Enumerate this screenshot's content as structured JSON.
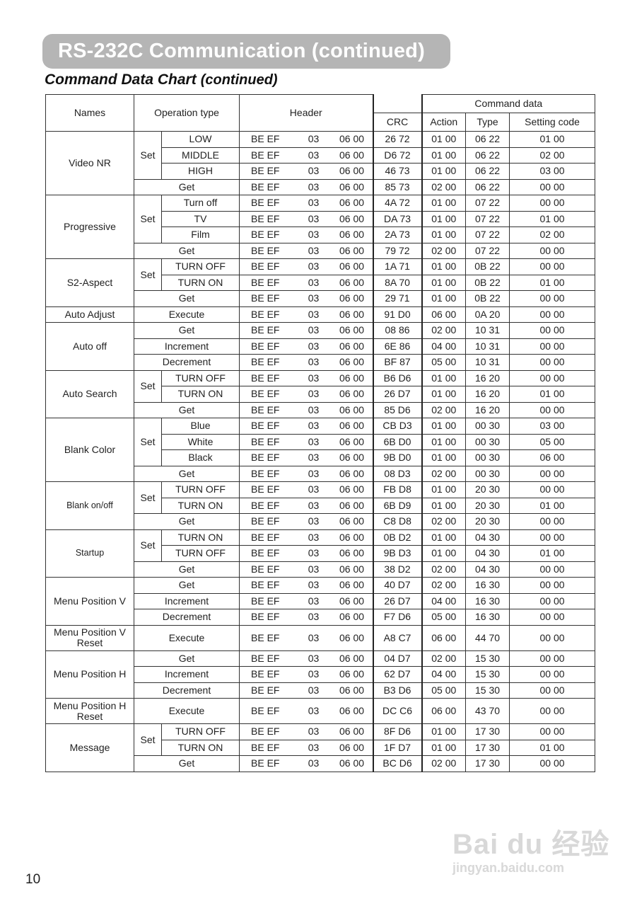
{
  "page": {
    "title": "RS-232C Communication (continued)",
    "subtitle": "Command Data Chart",
    "subtitle_suffix": "(continued)",
    "page_number": "10",
    "watermark": {
      "logo": "Baidu 经验",
      "url": "jingyan.baidu.com"
    }
  },
  "table": {
    "headers": {
      "names": "Names",
      "operation_type": "Operation type",
      "header": "Header",
      "command_data": "Command data",
      "crc": "CRC",
      "action": "Action",
      "type": "Type",
      "setting_code": "Setting code"
    },
    "header_bytes": [
      "BE EF",
      "03",
      "06 00"
    ],
    "set_label": "Set",
    "groups": [
      {
        "name": "Video NR",
        "set_rows": [
          [
            "LOW",
            "26 72",
            "01 00",
            "06 22",
            "01 00"
          ],
          [
            "MIDDLE",
            "D6 72",
            "01 00",
            "06 22",
            "02 00"
          ],
          [
            "HIGH",
            "46 73",
            "01 00",
            "06 22",
            "03 00"
          ]
        ],
        "rows": [
          [
            "Get",
            "85 73",
            "02 00",
            "06 22",
            "00 00"
          ]
        ]
      },
      {
        "name": "Progressive",
        "set_rows": [
          [
            "Turn off",
            "4A 72",
            "01 00",
            "07 22",
            "00 00"
          ],
          [
            "TV",
            "DA 73",
            "01 00",
            "07 22",
            "01 00"
          ],
          [
            "Film",
            "2A 73",
            "01 00",
            "07 22",
            "02 00"
          ]
        ],
        "rows": [
          [
            "Get",
            "79 72",
            "02 00",
            "07 22",
            "00 00"
          ]
        ]
      },
      {
        "name": "S2-Aspect",
        "set_rows": [
          [
            "TURN OFF",
            "1A 71",
            "01 00",
            "0B 22",
            "00 00"
          ],
          [
            "TURN ON",
            "8A 70",
            "01 00",
            "0B 22",
            "01 00"
          ]
        ],
        "rows": [
          [
            "Get",
            "29 71",
            "01 00",
            "0B 22",
            "00 00"
          ]
        ]
      },
      {
        "name": "Auto Adjust",
        "set_rows": [],
        "rows": [
          [
            "Execute",
            "91 D0",
            "06 00",
            "0A 20",
            "00 00"
          ]
        ]
      },
      {
        "name": "Auto off",
        "set_rows": [],
        "rows": [
          [
            "Get",
            "08 86",
            "02 00",
            "10 31",
            "00 00"
          ],
          [
            "Increment",
            "6E 86",
            "04 00",
            "10 31",
            "00 00"
          ],
          [
            "Decrement",
            "BF 87",
            "05 00",
            "10 31",
            "00 00"
          ]
        ]
      },
      {
        "name": "Auto Search",
        "set_rows": [
          [
            "TURN OFF",
            "B6 D6",
            "01 00",
            "16 20",
            "00 00"
          ],
          [
            "TURN ON",
            "26 D7",
            "01 00",
            "16 20",
            "01 00"
          ]
        ],
        "rows": [
          [
            "Get",
            "85 D6",
            "02 00",
            "16 20",
            "00 00"
          ]
        ]
      },
      {
        "name": "Blank Color",
        "set_rows": [
          [
            "Blue",
            "CB D3",
            "01 00",
            "00 30",
            "03 00"
          ],
          [
            "White",
            "6B D0",
            "01 00",
            "00 30",
            "05 00"
          ],
          [
            "Black",
            "9B D0",
            "01 00",
            "00 30",
            "06 00"
          ]
        ],
        "rows": [
          [
            "Get",
            "08 D3",
            "02 00",
            "00 30",
            "00 00"
          ]
        ]
      },
      {
        "name": "Blank on/off",
        "small": true,
        "set_rows": [
          [
            "TURN OFF",
            "FB D8",
            "01 00",
            "20 30",
            "00 00"
          ],
          [
            "TURN ON",
            "6B D9",
            "01 00",
            "20 30",
            "01 00"
          ]
        ],
        "rows": [
          [
            "Get",
            "C8 D8",
            "02 00",
            "20 30",
            "00 00"
          ]
        ]
      },
      {
        "name": "Startup",
        "small": true,
        "set_rows": [
          [
            "TURN ON",
            "0B D2",
            "01 00",
            "04 30",
            "00 00"
          ],
          [
            "TURN OFF",
            "9B D3",
            "01 00",
            "04 30",
            "01 00"
          ]
        ],
        "rows": [
          [
            "Get",
            "38 D2",
            "02 00",
            "04 30",
            "00 00"
          ]
        ]
      },
      {
        "name": "Menu Position V",
        "set_rows": [],
        "rows": [
          [
            "Get",
            "40 D7",
            "02 00",
            "16 30",
            "00 00"
          ],
          [
            "Increment",
            "26 D7",
            "04 00",
            "16 30",
            "00 00"
          ],
          [
            "Decrement",
            "F7 D6",
            "05 00",
            "16 30",
            "00 00"
          ]
        ]
      },
      {
        "name": "Menu Position V Reset",
        "tall": true,
        "set_rows": [],
        "rows": [
          [
            "Execute",
            "A8 C7",
            "06 00",
            "44 70",
            "00 00"
          ]
        ]
      },
      {
        "name": "Menu Position H",
        "set_rows": [],
        "rows": [
          [
            "Get",
            "04 D7",
            "02 00",
            "15 30",
            "00 00"
          ],
          [
            "Increment",
            "62 D7",
            "04 00",
            "15 30",
            "00 00"
          ],
          [
            "Decrement",
            "B3 D6",
            "05 00",
            "15 30",
            "00 00"
          ]
        ]
      },
      {
        "name": "Menu Position H Reset",
        "tall": true,
        "set_rows": [],
        "rows": [
          [
            "Execute",
            "DC C6",
            "06 00",
            "43 70",
            "00 00"
          ]
        ]
      },
      {
        "name": "Message",
        "set_rows": [
          [
            "TURN OFF",
            "8F D6",
            "01 00",
            "17 30",
            "00 00"
          ],
          [
            "TURN ON",
            "1F D7",
            "01 00",
            "17 30",
            "01 00"
          ]
        ],
        "rows": [
          [
            "Get",
            "BC D6",
            "02 00",
            "17 30",
            "00 00"
          ]
        ]
      }
    ]
  }
}
